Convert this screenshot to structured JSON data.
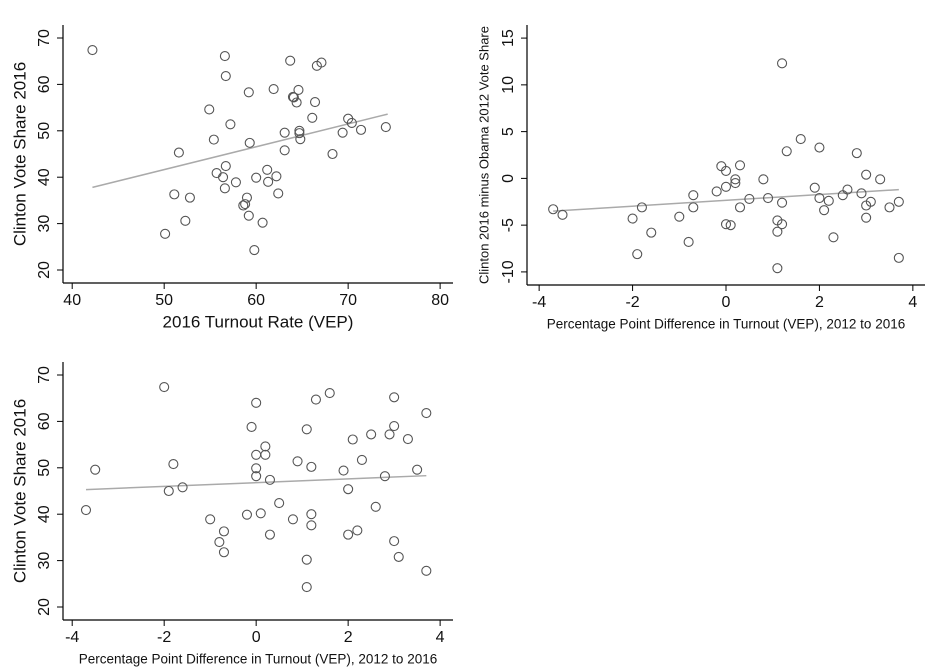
{
  "chart_data": [
    {
      "type": "scatter",
      "x_label": "2016 Turnout Rate (VEP)",
      "y_label": "Clinton Vote Share 2016",
      "xlim": [
        39,
        81.4
      ],
      "ylim": [
        17.2,
        72.8
      ],
      "xticks": [
        40,
        50,
        60,
        70,
        80
      ],
      "yticks": [
        20,
        30,
        40,
        50,
        60,
        70
      ],
      "color": "#555555",
      "fit_color": "#aaaaaa",
      "x": [
        42.2,
        50.1,
        51.1,
        51.6,
        52.3,
        52.8,
        54.9,
        55.4,
        55.7,
        56.4,
        56.6,
        56.7,
        56.6,
        56.7,
        57.2,
        57.8,
        58.6,
        58.8,
        59.0,
        59.2,
        59.2,
        59.3,
        59.8,
        60.0,
        60.7,
        61.2,
        61.3,
        61.9,
        62.2,
        62.4,
        63.1,
        63.1,
        63.7,
        64.0,
        64.1,
        64.4,
        64.6,
        64.7,
        64.7,
        64.8,
        66.1,
        66.4,
        66.6,
        67.1,
        68.3,
        69.4,
        70.0,
        70.4,
        71.4,
        74.1
      ],
      "y": [
        67.4,
        27.8,
        36.3,
        45.3,
        30.6,
        35.6,
        54.6,
        48.1,
        40.9,
        40.0,
        37.6,
        42.4,
        66.1,
        61.8,
        51.4,
        38.9,
        33.9,
        34.2,
        35.6,
        31.7,
        58.3,
        47.4,
        24.3,
        39.9,
        30.2,
        41.6,
        39.0,
        59.0,
        40.2,
        36.5,
        49.6,
        45.8,
        65.1,
        57.3,
        57.2,
        56.1,
        58.8,
        50.0,
        49.5,
        48.2,
        52.8,
        56.2,
        64.0,
        64.7,
        45.0,
        49.6,
        52.6,
        51.7,
        50.2,
        50.8
      ],
      "fit": {
        "x": [
          42.2,
          74.3
        ],
        "y": [
          37.8,
          53.6
        ]
      }
    },
    {
      "type": "scatter",
      "x_label": "Percentage Point Difference in Turnout (VEP), 2012 to 2016",
      "y_label": "Clinton 2016 minus Obama 2012 Vote Share",
      "xlim": [
        -4.26,
        4.26
      ],
      "ylim": [
        -11.4,
        16.4
      ],
      "xticks": [
        -4,
        -2,
        0,
        2,
        4
      ],
      "yticks": [
        -10,
        -5,
        0,
        5,
        10,
        15
      ],
      "color": "#555555",
      "fit_color": "#aaaaaa",
      "x": [
        -3.7,
        -3.5,
        -2.0,
        -1.9,
        -1.8,
        -1.6,
        -1.0,
        -0.8,
        -0.7,
        -0.7,
        -0.2,
        -0.1,
        0.0,
        0.0,
        0.0,
        0.1,
        0.2,
        0.2,
        0.3,
        0.3,
        0.5,
        0.8,
        0.9,
        1.1,
        1.1,
        1.1,
        1.2,
        1.2,
        1.2,
        1.3,
        1.6,
        1.9,
        2.0,
        2.0,
        2.1,
        2.2,
        2.3,
        2.5,
        2.6,
        2.8,
        2.9,
        3.0,
        3.0,
        3.0,
        3.1,
        3.3,
        3.5,
        3.7,
        3.7
      ],
      "y": [
        -3.3,
        -3.9,
        -4.3,
        -8.1,
        -3.1,
        -5.8,
        -4.1,
        -6.8,
        -1.8,
        -3.1,
        -1.4,
        1.3,
        0.8,
        -0.9,
        -4.9,
        -5.0,
        -0.5,
        -0.1,
        1.4,
        -3.1,
        -2.2,
        -0.1,
        -2.1,
        -4.5,
        -5.7,
        -9.6,
        12.3,
        -4.9,
        -2.6,
        2.9,
        4.2,
        -1.0,
        3.3,
        -2.1,
        -3.4,
        -2.4,
        -6.3,
        -1.8,
        -1.2,
        2.7,
        -1.6,
        0.4,
        -2.9,
        -4.2,
        -2.5,
        -0.1,
        -3.1,
        -2.5,
        -8.5
      ],
      "fit": {
        "x": [
          -3.7,
          3.7
        ],
        "y": [
          -3.5,
          -1.2
        ]
      }
    },
    {
      "type": "scatter",
      "x_label": "Percentage Point Difference in Turnout (VEP), 2012 to 2016",
      "y_label": "Clinton Vote Share 2016",
      "xlim": [
        -4.2,
        4.28
      ],
      "ylim": [
        17.2,
        72.8
      ],
      "xticks": [
        -4,
        -2,
        0,
        2,
        4
      ],
      "yticks": [
        20,
        30,
        40,
        50,
        60,
        70
      ],
      "color": "#555555",
      "fit_color": "#aaaaaa",
      "x": [
        -3.7,
        -3.5,
        -2.0,
        -1.9,
        -1.8,
        -1.6,
        -1.0,
        -0.8,
        -0.7,
        -0.7,
        -0.2,
        -0.1,
        0.0,
        0.0,
        0.0,
        0.0,
        0.1,
        0.2,
        0.2,
        0.3,
        0.3,
        0.5,
        0.8,
        0.9,
        1.1,
        1.1,
        1.1,
        1.2,
        1.2,
        1.2,
        1.3,
        1.6,
        1.9,
        2.0,
        2.0,
        2.1,
        2.2,
        2.3,
        2.5,
        2.6,
        2.8,
        2.9,
        3.0,
        3.0,
        3.0,
        3.1,
        3.3,
        3.5,
        3.7,
        3.7
      ],
      "y": [
        40.9,
        49.6,
        67.4,
        45.0,
        50.8,
        45.8,
        38.9,
        34.0,
        31.8,
        36.3,
        39.9,
        58.8,
        64.0,
        52.8,
        49.9,
        48.2,
        40.2,
        52.8,
        54.6,
        47.4,
        35.6,
        42.4,
        38.9,
        51.4,
        58.3,
        30.2,
        24.3,
        50.2,
        40.0,
        37.6,
        64.7,
        66.1,
        49.4,
        45.4,
        35.6,
        56.1,
        36.5,
        51.7,
        57.2,
        41.6,
        48.2,
        57.2,
        59.0,
        65.2,
        34.2,
        30.8,
        56.2,
        49.6,
        61.8,
        27.8
      ],
      "fit": {
        "x": [
          -3.7,
          3.7
        ],
        "y": [
          45.3,
          48.3
        ]
      }
    }
  ]
}
